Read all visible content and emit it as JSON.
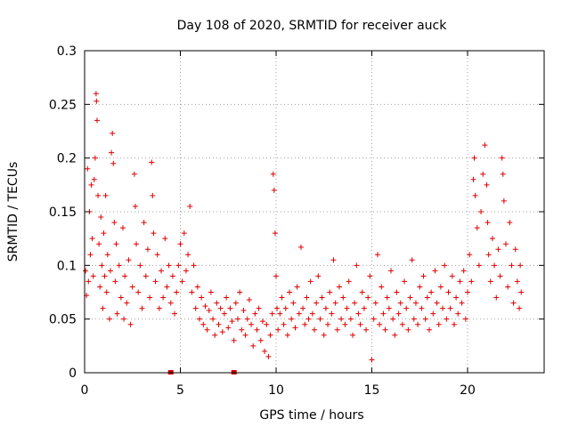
{
  "chart_data": {
    "type": "scatter",
    "title": "Day 108 of 2020, SRMTID for receiver auck",
    "xlabel": "GPS time / hours",
    "ylabel": "SRMTID / TECUs",
    "xlim": [
      0,
      24
    ],
    "ylim": [
      0,
      0.3
    ],
    "xticks": [
      0,
      5,
      10,
      15,
      20
    ],
    "xtick_labels": [
      "0",
      "5",
      "10",
      "15",
      "20"
    ],
    "yticks": [
      0,
      0.05,
      0.1,
      0.15,
      0.2,
      0.25,
      0.3
    ],
    "ytick_labels": [
      "0",
      "0.05",
      "0.1",
      "0.15",
      "0.2",
      "0.25",
      "0.3"
    ],
    "grid": true,
    "marker": "plus",
    "color": "#e00000",
    "gap_markers_x": [
      4.5,
      7.8
    ],
    "series": [
      {
        "name": "SRMTID",
        "points": [
          [
            0.05,
            0.095
          ],
          [
            0.1,
            0.072
          ],
          [
            0.15,
            0.19
          ],
          [
            0.2,
            0.085
          ],
          [
            0.25,
            0.15
          ],
          [
            0.3,
            0.11
          ],
          [
            0.35,
            0.175
          ],
          [
            0.4,
            0.125
          ],
          [
            0.45,
            0.09
          ],
          [
            0.5,
            0.18
          ],
          [
            0.55,
            0.2
          ],
          [
            0.6,
            0.26
          ],
          [
            0.62,
            0.253
          ],
          [
            0.65,
            0.235
          ],
          [
            0.7,
            0.165
          ],
          [
            0.75,
            0.12
          ],
          [
            0.8,
            0.08
          ],
          [
            0.85,
            0.145
          ],
          [
            0.9,
            0.1
          ],
          [
            0.95,
            0.06
          ],
          [
            1.0,
            0.13
          ],
          [
            1.05,
            0.09
          ],
          [
            1.1,
            0.165
          ],
          [
            1.15,
            0.075
          ],
          [
            1.2,
            0.11
          ],
          [
            1.3,
            0.05
          ],
          [
            1.35,
            0.095
          ],
          [
            1.4,
            0.205
          ],
          [
            1.45,
            0.223
          ],
          [
            1.5,
            0.195
          ],
          [
            1.55,
            0.14
          ],
          [
            1.6,
            0.085
          ],
          [
            1.65,
            0.12
          ],
          [
            1.7,
            0.055
          ],
          [
            1.8,
            0.1
          ],
          [
            1.9,
            0.07
          ],
          [
            2.0,
            0.135
          ],
          [
            2.05,
            0.05
          ],
          [
            2.1,
            0.09
          ],
          [
            2.2,
            0.065
          ],
          [
            2.3,
            0.105
          ],
          [
            2.4,
            0.045
          ],
          [
            2.5,
            0.08
          ],
          [
            2.6,
            0.185
          ],
          [
            2.65,
            0.155
          ],
          [
            2.7,
            0.12
          ],
          [
            2.8,
            0.075
          ],
          [
            2.9,
            0.1
          ],
          [
            3.0,
            0.06
          ],
          [
            3.1,
            0.14
          ],
          [
            3.2,
            0.09
          ],
          [
            3.3,
            0.115
          ],
          [
            3.4,
            0.07
          ],
          [
            3.5,
            0.196
          ],
          [
            3.55,
            0.165
          ],
          [
            3.6,
            0.13
          ],
          [
            3.7,
            0.085
          ],
          [
            3.8,
            0.11
          ],
          [
            3.9,
            0.06
          ],
          [
            4.0,
            0.095
          ],
          [
            4.1,
            0.07
          ],
          [
            4.2,
            0.125
          ],
          [
            4.3,
            0.08
          ],
          [
            4.4,
            0.1
          ],
          [
            4.5,
            0.065
          ],
          [
            4.6,
            0.09
          ],
          [
            4.7,
            0.055
          ],
          [
            4.8,
            0.075
          ],
          [
            4.9,
            0.1
          ],
          [
            5.0,
            0.12
          ],
          [
            5.1,
            0.085
          ],
          [
            5.2,
            0.13
          ],
          [
            5.3,
            0.095
          ],
          [
            5.4,
            0.11
          ],
          [
            5.5,
            0.155
          ],
          [
            5.6,
            0.075
          ],
          [
            5.7,
            0.1
          ],
          [
            5.8,
            0.06
          ],
          [
            5.9,
            0.08
          ],
          [
            6.0,
            0.05
          ],
          [
            6.1,
            0.07
          ],
          [
            6.2,
            0.045
          ],
          [
            6.3,
            0.062
          ],
          [
            6.4,
            0.04
          ],
          [
            6.5,
            0.058
          ],
          [
            6.6,
            0.075
          ],
          [
            6.7,
            0.05
          ],
          [
            6.8,
            0.035
          ],
          [
            6.9,
            0.065
          ],
          [
            7.0,
            0.045
          ],
          [
            7.1,
            0.06
          ],
          [
            7.2,
            0.038
          ],
          [
            7.3,
            0.055
          ],
          [
            7.4,
            0.07
          ],
          [
            7.5,
            0.042
          ],
          [
            7.6,
            0.06
          ],
          [
            7.7,
            0.048
          ],
          [
            7.8,
            0.03
          ],
          [
            7.9,
            0.065
          ],
          [
            8.0,
            0.05
          ],
          [
            8.1,
            0.075
          ],
          [
            8.2,
            0.04
          ],
          [
            8.3,
            0.058
          ],
          [
            8.4,
            0.035
          ],
          [
            8.5,
            0.05
          ],
          [
            8.6,
            0.068
          ],
          [
            8.7,
            0.045
          ],
          [
            8.8,
            0.025
          ],
          [
            8.9,
            0.055
          ],
          [
            9.0,
            0.04
          ],
          [
            9.1,
            0.06
          ],
          [
            9.2,
            0.03
          ],
          [
            9.3,
            0.048
          ],
          [
            9.4,
            0.02
          ],
          [
            9.5,
            0.045
          ],
          [
            9.6,
            0.015
          ],
          [
            9.7,
            0.035
          ],
          [
            9.8,
            0.055
          ],
          [
            9.85,
            0.185
          ],
          [
            9.9,
            0.17
          ],
          [
            9.95,
            0.13
          ],
          [
            10.0,
            0.09
          ],
          [
            10.05,
            0.06
          ],
          [
            10.1,
            0.04
          ],
          [
            10.2,
            0.055
          ],
          [
            10.3,
            0.07
          ],
          [
            10.4,
            0.045
          ],
          [
            10.5,
            0.06
          ],
          [
            10.6,
            0.035
          ],
          [
            10.7,
            0.075
          ],
          [
            10.8,
            0.05
          ],
          [
            10.9,
            0.065
          ],
          [
            11.0,
            0.042
          ],
          [
            11.1,
            0.08
          ],
          [
            11.2,
            0.055
          ],
          [
            11.3,
            0.117
          ],
          [
            11.4,
            0.06
          ],
          [
            11.5,
            0.045
          ],
          [
            11.6,
            0.07
          ],
          [
            11.7,
            0.05
          ],
          [
            11.8,
            0.085
          ],
          [
            11.9,
            0.055
          ],
          [
            12.0,
            0.04
          ],
          [
            12.1,
            0.065
          ],
          [
            12.2,
            0.09
          ],
          [
            12.3,
            0.05
          ],
          [
            12.4,
            0.07
          ],
          [
            12.5,
            0.035
          ],
          [
            12.6,
            0.06
          ],
          [
            12.7,
            0.045
          ],
          [
            12.8,
            0.075
          ],
          [
            12.9,
            0.055
          ],
          [
            13.0,
            0.105
          ],
          [
            13.1,
            0.065
          ],
          [
            13.2,
            0.04
          ],
          [
            13.3,
            0.08
          ],
          [
            13.4,
            0.05
          ],
          [
            13.5,
            0.07
          ],
          [
            13.6,
            0.045
          ],
          [
            13.7,
            0.06
          ],
          [
            13.8,
            0.085
          ],
          [
            13.9,
            0.05
          ],
          [
            14.0,
            0.035
          ],
          [
            14.1,
            0.065
          ],
          [
            14.2,
            0.1
          ],
          [
            14.3,
            0.055
          ],
          [
            14.4,
            0.045
          ],
          [
            14.5,
            0.075
          ],
          [
            14.6,
            0.06
          ],
          [
            14.7,
            0.04
          ],
          [
            14.8,
            0.07
          ],
          [
            14.9,
            0.09
          ],
          [
            15.0,
            0.012
          ],
          [
            15.1,
            0.05
          ],
          [
            15.2,
            0.065
          ],
          [
            15.3,
            0.11
          ],
          [
            15.4,
            0.045
          ],
          [
            15.5,
            0.08
          ],
          [
            15.6,
            0.055
          ],
          [
            15.7,
            0.04
          ],
          [
            15.8,
            0.07
          ],
          [
            15.9,
            0.06
          ],
          [
            16.0,
            0.095
          ],
          [
            16.1,
            0.05
          ],
          [
            16.2,
            0.035
          ],
          [
            16.3,
            0.075
          ],
          [
            16.4,
            0.055
          ],
          [
            16.5,
            0.065
          ],
          [
            16.6,
            0.045
          ],
          [
            16.7,
            0.085
          ],
          [
            16.8,
            0.06
          ],
          [
            16.9,
            0.04
          ],
          [
            17.0,
            0.07
          ],
          [
            17.1,
            0.105
          ],
          [
            17.2,
            0.05
          ],
          [
            17.3,
            0.065
          ],
          [
            17.4,
            0.045
          ],
          [
            17.5,
            0.08
          ],
          [
            17.6,
            0.06
          ],
          [
            17.7,
            0.09
          ],
          [
            17.8,
            0.05
          ],
          [
            17.9,
            0.07
          ],
          [
            18.0,
            0.04
          ],
          [
            18.1,
            0.075
          ],
          [
            18.2,
            0.055
          ],
          [
            18.3,
            0.095
          ],
          [
            18.4,
            0.065
          ],
          [
            18.5,
            0.045
          ],
          [
            18.6,
            0.08
          ],
          [
            18.7,
            0.06
          ],
          [
            18.8,
            0.1
          ],
          [
            18.9,
            0.05
          ],
          [
            19.0,
            0.075
          ],
          [
            19.1,
            0.06
          ],
          [
            19.2,
            0.09
          ],
          [
            19.3,
            0.045
          ],
          [
            19.4,
            0.07
          ],
          [
            19.5,
            0.055
          ],
          [
            19.6,
            0.085
          ],
          [
            19.7,
            0.065
          ],
          [
            19.8,
            0.095
          ],
          [
            19.9,
            0.05
          ],
          [
            20.0,
            0.075
          ],
          [
            20.1,
            0.11
          ],
          [
            20.2,
            0.085
          ],
          [
            20.3,
            0.18
          ],
          [
            20.35,
            0.2
          ],
          [
            20.4,
            0.165
          ],
          [
            20.5,
            0.135
          ],
          [
            20.6,
            0.1
          ],
          [
            20.7,
            0.15
          ],
          [
            20.8,
            0.185
          ],
          [
            20.9,
            0.212
          ],
          [
            21.0,
            0.175
          ],
          [
            21.05,
            0.14
          ],
          [
            21.1,
            0.11
          ],
          [
            21.2,
            0.085
          ],
          [
            21.3,
            0.125
          ],
          [
            21.4,
            0.1
          ],
          [
            21.5,
            0.07
          ],
          [
            21.6,
            0.115
          ],
          [
            21.7,
            0.09
          ],
          [
            21.8,
            0.2
          ],
          [
            21.85,
            0.185
          ],
          [
            21.9,
            0.16
          ],
          [
            22.0,
            0.12
          ],
          [
            22.1,
            0.08
          ],
          [
            22.2,
            0.14
          ],
          [
            22.3,
            0.1
          ],
          [
            22.4,
            0.065
          ],
          [
            22.5,
            0.115
          ],
          [
            22.6,
            0.085
          ],
          [
            22.7,
            0.06
          ],
          [
            22.75,
            0.1
          ],
          [
            22.8,
            0.075
          ]
        ]
      }
    ]
  }
}
